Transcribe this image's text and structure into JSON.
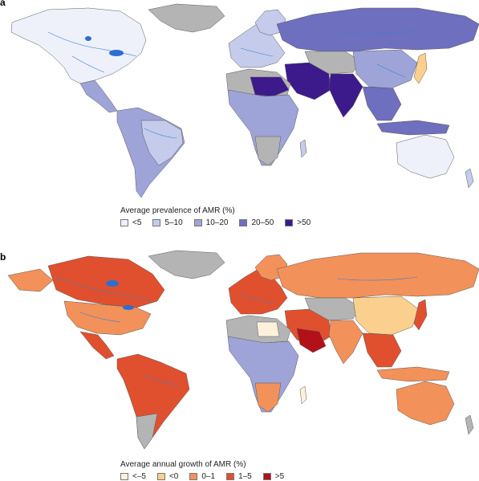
{
  "panel_a": {
    "letter": "a",
    "legend_title": "Average prevalence of AMR (%)",
    "legend": [
      {
        "label": "<5",
        "color": "#eef0fa"
      },
      {
        "label": "5–10",
        "color": "#c5cbea"
      },
      {
        "label": "10–20",
        "color": "#9ea4d8"
      },
      {
        "label": "20–50",
        "color": "#6e6fbf"
      },
      {
        "label": ">50",
        "color": "#3c1a8c"
      }
    ]
  },
  "panel_b": {
    "letter": "b",
    "legend_title": "Average annual growth of AMR (%)",
    "legend": [
      {
        "label": "<–5",
        "color": "#fdf1dc"
      },
      {
        "label": "<0",
        "color": "#fbcf8e"
      },
      {
        "label": "0–1",
        "color": "#f2915a"
      },
      {
        "label": "1–5",
        "color": "#e0502e"
      },
      {
        "label": ">5",
        "color": "#b3111a"
      }
    ]
  },
  "colors": {
    "no_data": "#b4b4b4",
    "river": "#3b7fd4",
    "lake": "#2b6fd1",
    "border": "#5a5a5a"
  }
}
